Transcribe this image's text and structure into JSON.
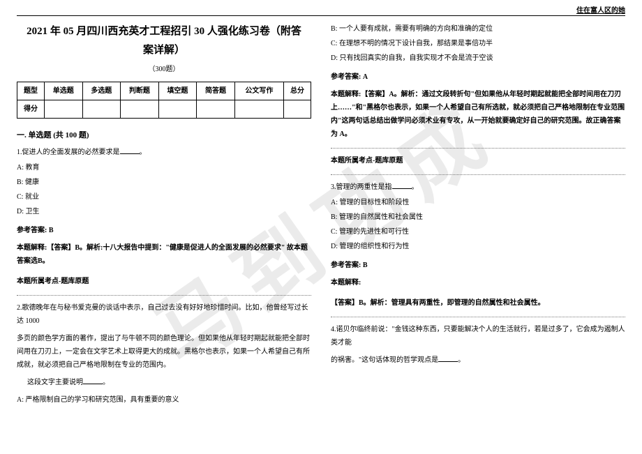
{
  "header_corner": "住在富人区的她",
  "watermark": "马到功成",
  "title_line1": "2021 年 05 月四川西充英才工程招引 30 人强化练习卷（附答",
  "title_line2": "案详解）",
  "sub_count": "（300题）",
  "score_table": {
    "headers": [
      "题型",
      "单选题",
      "多选题",
      "判断题",
      "填空题",
      "简答题",
      "公文写作",
      "总分"
    ],
    "row2_first": "得分"
  },
  "section1": "一. 单选题 (共 100 题)",
  "q1": {
    "stem": "1.促进人的全面发展的必然要求是",
    "blank_after": "。",
    "A": "A: 教育",
    "B": "B: 健康",
    "C": "C: 就业",
    "D": "D: 卫生",
    "ans": "参考答案: B",
    "expl": "本题解释:【答案】B。解析:十八大报告中提到：\"健康是促进人的全面发展的必然要求\" 故本题答案选B。",
    "tag": "本题所属考点-题库原题"
  },
  "q2": {
    "stem1": "2.歌德晚年在与秘书爱克曼的谈话中表示，自己过去没有好好地珍惜时间。比如，他曾经写过长达 1000",
    "stem2": "多页的颜色学方面的著作，提出了与牛顿不同的颜色理论。但如果他从年轻时期起就能把全部时间用在刀刃上，一定会在文学艺术上取得更大的成就。黑格尔也表示，如果一个人希望自己有所成就，就必须把自己严格地限制在专业的范围内。",
    "stem3": "这段文字主要说明",
    "A": "A: 严格限制自己的学习和研究范围，具有重要的意义",
    "B": "B: 一个人要有成就，需要有明确的方向和准确的定位",
    "C": "C: 在理想不明的情况下设计自我，那结果是事倍功半",
    "D": "D: 只有找回真实的自我，自我实现才不会是流于空谈",
    "ans": "参考答案: A",
    "expl": "本题解释:【答案】A。解析：通过文段转折句\"但如果他从年轻时期起就能把全部时间用在刀刃上……\"和\"黑格尔也表示，如果一个人希望自己有所选就，就必须把自己严格地限制在专业范围内\"这两句话总结出做学问必须术业有专攻，从一开始就要确定好自己的研究范围。故正确答案为 A。",
    "tag": "本题所属考点-题库原题"
  },
  "q3": {
    "stem": "3.管理的两重性是指",
    "A": "A: 管理的目标性和阶段性",
    "B": "B: 管理的自然属性和社会属性",
    "C": "C: 管理的先进性和可行性",
    "D": "D: 管理的组织性和行为性",
    "ans": "参考答案: B",
    "expl_label": "本题解释:",
    "expl": "【答案】B。解析：管理具有两重性，即管理的自然属性和社会属性。"
  },
  "q4": {
    "stem1": "4.诺贝尔临终前说：\"金钱这种东西，只要能解决个人的生活就行，若是过多了，它会成为遏制人类才能",
    "stem2": "的祸害。\"这句话体现的哲学观点是"
  }
}
